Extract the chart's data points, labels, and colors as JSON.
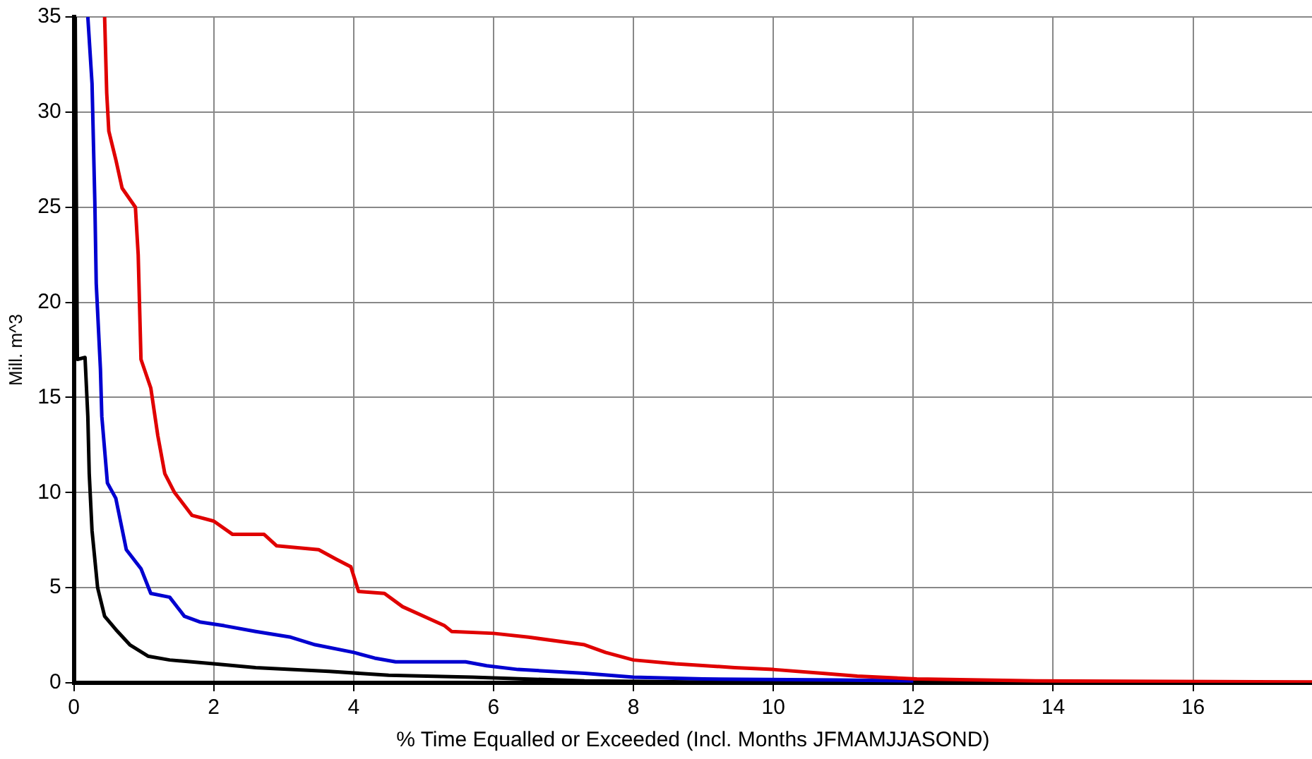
{
  "chart_data": {
    "type": "line",
    "xlabel": "% Time Equalled or Exceeded (Incl. Months JFMAMJJASOND)",
    "ylabel": "Mill. m^3",
    "xlim": [
      0,
      17.7
    ],
    "ylim": [
      0,
      35
    ],
    "xticks": [
      0,
      2,
      4,
      6,
      8,
      10,
      12,
      14,
      16
    ],
    "yticks": [
      0,
      5,
      10,
      15,
      20,
      25,
      30,
      35
    ],
    "grid": true,
    "legend": false,
    "marker": "none",
    "line_style": "solid",
    "series": [
      {
        "color": "#e00000",
        "x": [
          0.44,
          0.47,
          0.5,
          0.6,
          0.69,
          0.88,
          0.92,
          0.96,
          1.1,
          1.2,
          1.3,
          1.44,
          1.69,
          2.0,
          2.27,
          2.72,
          2.9,
          3.5,
          3.75,
          3.96,
          4.07,
          4.44,
          4.7,
          5.06,
          5.3,
          5.4,
          6.0,
          6.5,
          7.3,
          7.6,
          8.0,
          8.6,
          9.45,
          10.0,
          10.7,
          11.2,
          12.05,
          13.75,
          17.7
        ],
        "values": [
          35,
          31,
          29,
          27.5,
          26,
          25,
          22.5,
          17,
          15.5,
          13,
          11,
          10,
          8.8,
          8.5,
          7.8,
          7.8,
          7.2,
          7.0,
          6.5,
          6.1,
          4.8,
          4.7,
          4.0,
          3.4,
          3.0,
          2.7,
          2.6,
          2.4,
          2.0,
          1.6,
          1.2,
          1.0,
          0.8,
          0.7,
          0.5,
          0.35,
          0.2,
          0.1,
          0.05
        ]
      },
      {
        "color": "#0000d0",
        "x": [
          0.2,
          0.26,
          0.3,
          0.32,
          0.38,
          0.4,
          0.48,
          0.6,
          0.75,
          0.96,
          1.1,
          1.37,
          1.58,
          1.8,
          2.15,
          2.6,
          3.1,
          3.45,
          4.0,
          4.3,
          4.6,
          5.6,
          5.9,
          6.35,
          7.3,
          8.0,
          9.0,
          10.9,
          12.0
        ],
        "values": [
          35,
          31.5,
          25.3,
          21,
          16.5,
          14,
          10.5,
          9.7,
          7,
          6,
          4.7,
          4.5,
          3.5,
          3.2,
          3.0,
          2.7,
          2.4,
          2.0,
          1.6,
          1.3,
          1.1,
          1.1,
          0.9,
          0.7,
          0.5,
          0.3,
          0.2,
          0.15,
          0.1
        ]
      },
      {
        "color": "#000000",
        "x": [
          0.02,
          0.05,
          0.16,
          0.2,
          0.22,
          0.26,
          0.34,
          0.44,
          0.6,
          0.8,
          1.06,
          1.37,
          2.0,
          2.6,
          3.65,
          4.5,
          5.7,
          7.3,
          8.8,
          17.7
        ],
        "values": [
          35,
          17,
          17.1,
          14,
          11,
          8,
          5,
          3.5,
          2.8,
          2.0,
          1.4,
          1.2,
          1.0,
          0.8,
          0.6,
          0.4,
          0.3,
          0.1,
          0.05,
          0.02
        ]
      }
    ]
  }
}
